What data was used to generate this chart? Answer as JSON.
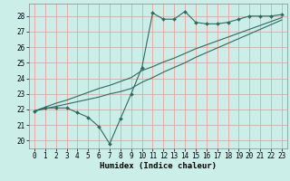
{
  "title": "",
  "xlabel": "Humidex (Indice chaleur)",
  "bg_color": "#cceee8",
  "line_color": "#2d6b5e",
  "grid_color": "#f0a0a0",
  "x_data": [
    0,
    1,
    2,
    3,
    4,
    5,
    6,
    7,
    8,
    9,
    10,
    11,
    12,
    13,
    14,
    15,
    16,
    17,
    18,
    19,
    20,
    21,
    22,
    23
  ],
  "y_main": [
    21.9,
    22.1,
    22.1,
    22.1,
    21.8,
    21.5,
    20.9,
    19.8,
    21.4,
    23.0,
    24.7,
    28.2,
    27.8,
    27.8,
    28.3,
    27.6,
    27.5,
    27.5,
    27.6,
    27.8,
    28.0,
    28.0,
    28.0,
    28.1
  ],
  "y_linear1": [
    21.9,
    22.15,
    22.4,
    22.6,
    22.85,
    23.1,
    23.35,
    23.55,
    23.8,
    24.05,
    24.5,
    24.75,
    25.05,
    25.3,
    25.6,
    25.9,
    26.15,
    26.4,
    26.65,
    26.9,
    27.15,
    27.4,
    27.65,
    27.9
  ],
  "y_linear2": [
    21.9,
    22.05,
    22.2,
    22.35,
    22.5,
    22.65,
    22.8,
    23.0,
    23.15,
    23.35,
    23.75,
    24.05,
    24.4,
    24.7,
    25.0,
    25.35,
    25.65,
    25.95,
    26.25,
    26.55,
    26.85,
    27.15,
    27.45,
    27.75
  ],
  "ylim": [
    19.5,
    28.8
  ],
  "xlim": [
    -0.5,
    23.5
  ],
  "yticks": [
    20,
    21,
    22,
    23,
    24,
    25,
    26,
    27,
    28
  ],
  "xticks": [
    0,
    1,
    2,
    3,
    4,
    5,
    6,
    7,
    8,
    9,
    10,
    11,
    12,
    13,
    14,
    15,
    16,
    17,
    18,
    19,
    20,
    21,
    22,
    23
  ],
  "tick_fontsize": 5.5,
  "xlabel_fontsize": 6.5
}
